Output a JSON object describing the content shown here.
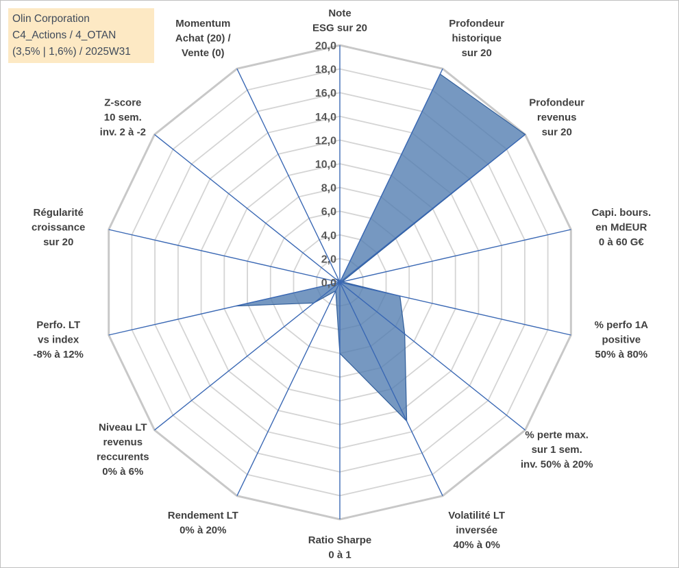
{
  "info": {
    "line1": "Olin Corporation",
    "line2": "C4_Actions / 4_OTAN",
    "line3": "(3,5% | 1,6%) / 2025W31"
  },
  "chart_data": {
    "type": "radar",
    "axes": [
      [
        "Note",
        "ESG sur 20"
      ],
      [
        "Profondeur",
        "historique",
        "sur 20"
      ],
      [
        "Profondeur",
        "revenus",
        "sur 20"
      ],
      [
        "Capi. bours.",
        "en MdEUR",
        "0 à 60 G€"
      ],
      [
        "% perfo 1A",
        "positive",
        "50% à 80%"
      ],
      [
        "% perte max.",
        "sur 1 sem.",
        "inv. 50% à 20%"
      ],
      [
        "Volatilité LT",
        "inversée",
        "40% à 0%"
      ],
      [
        "Ratio Sharpe",
        "0 à 1"
      ],
      [
        "Rendement LT",
        "0% à 20%"
      ],
      [
        "Niveau LT",
        "revenus",
        "reccurents",
        "0% à 6%"
      ],
      [
        "Perfo. LT",
        "vs index",
        "-8% à 12%"
      ],
      [
        "Régularité",
        "croissance",
        "sur 20"
      ],
      [
        "Z-score",
        "10 sem.",
        "inv. 2 à -2"
      ],
      [
        "Momentum",
        "Achat (20) /",
        "Vente (0)"
      ]
    ],
    "series": [
      {
        "values": [
          0,
          19.5,
          20,
          0.2,
          5.2,
          7.0,
          13.0,
          6.0,
          0.8,
          2.8,
          9.0,
          0,
          0.5,
          0.2
        ],
        "color": "#4f7bb0"
      }
    ],
    "rlim": [
      0,
      20
    ],
    "ticks": [
      "0,0",
      "2,0",
      "4,0",
      "6,0",
      "8,0",
      "10,0",
      "12,0",
      "14,0",
      "16,0",
      "18,0",
      "20,0"
    ],
    "grid": true,
    "legend": "none"
  }
}
